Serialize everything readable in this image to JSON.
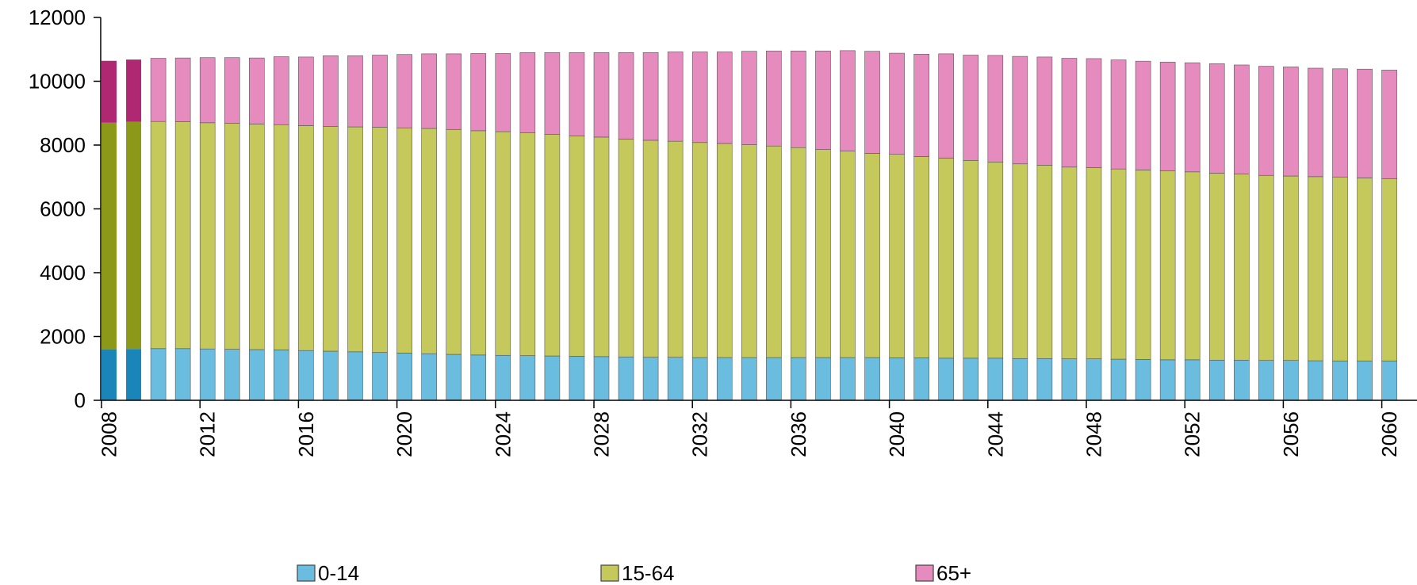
{
  "chart_data": {
    "type": "bar",
    "stacked": true,
    "title": "",
    "xlabel": "",
    "ylabel": "",
    "ylim": [
      0,
      12000
    ],
    "yticks": [
      0,
      2000,
      4000,
      6000,
      8000,
      10000,
      12000
    ],
    "x_tick_labels": [
      "2008",
      "2012",
      "2016",
      "2020",
      "2024",
      "2028",
      "2032",
      "2036",
      "2040",
      "2044",
      "2048",
      "2052",
      "2056",
      "2060"
    ],
    "categories": [
      2008,
      2009,
      2010,
      2011,
      2012,
      2013,
      2014,
      2015,
      2016,
      2017,
      2018,
      2019,
      2020,
      2021,
      2022,
      2023,
      2024,
      2025,
      2026,
      2027,
      2028,
      2029,
      2030,
      2031,
      2032,
      2033,
      2034,
      2035,
      2036,
      2037,
      2038,
      2039,
      2040,
      2041,
      2042,
      2043,
      2044,
      2045,
      2046,
      2047,
      2048,
      2049,
      2050,
      2051,
      2052,
      2053,
      2054,
      2055,
      2056,
      2057,
      2058,
      2059,
      2060
    ],
    "legend_position": "bottom",
    "grid": false,
    "series": [
      {
        "name": "0-14",
        "color": "#6bbde0",
        "highlight_color": "#1a85b8",
        "values": [
          1600,
          1610,
          1620,
          1620,
          1610,
          1600,
          1590,
          1580,
          1560,
          1540,
          1520,
          1500,
          1480,
          1460,
          1440,
          1420,
          1410,
          1400,
          1390,
          1380,
          1370,
          1360,
          1350,
          1350,
          1340,
          1340,
          1340,
          1340,
          1340,
          1340,
          1340,
          1340,
          1330,
          1330,
          1320,
          1320,
          1320,
          1310,
          1310,
          1300,
          1300,
          1290,
          1280,
          1270,
          1270,
          1260,
          1260,
          1250,
          1250,
          1240,
          1230,
          1230,
          1230
        ]
      },
      {
        "name": "15-64",
        "color": "#c5c95c",
        "highlight_color": "#8c9818",
        "values": [
          7100,
          7120,
          7120,
          7110,
          7090,
          7080,
          7070,
          7060,
          7050,
          7040,
          7050,
          7060,
          7050,
          7060,
          7050,
          7030,
          7010,
          6990,
          6950,
          6910,
          6880,
          6830,
          6800,
          6770,
          6740,
          6710,
          6670,
          6630,
          6580,
          6520,
          6470,
          6400,
          6380,
          6310,
          6270,
          6200,
          6150,
          6100,
          6060,
          6010,
          5990,
          5960,
          5940,
          5920,
          5890,
          5860,
          5830,
          5800,
          5780,
          5770,
          5770,
          5740,
          5710
        ]
      },
      {
        "name": "65+",
        "color": "#e58bbd",
        "highlight_color": "#b02872",
        "values": [
          1940,
          1950,
          1980,
          2000,
          2040,
          2060,
          2070,
          2130,
          2150,
          2220,
          2230,
          2260,
          2310,
          2340,
          2370,
          2420,
          2450,
          2510,
          2560,
          2610,
          2650,
          2710,
          2750,
          2800,
          2840,
          2870,
          2930,
          2980,
          3030,
          3090,
          3150,
          3200,
          3170,
          3210,
          3270,
          3300,
          3340,
          3370,
          3390,
          3410,
          3420,
          3420,
          3410,
          3410,
          3420,
          3430,
          3420,
          3420,
          3420,
          3400,
          3390,
          3410,
          3410
        ]
      }
    ]
  }
}
